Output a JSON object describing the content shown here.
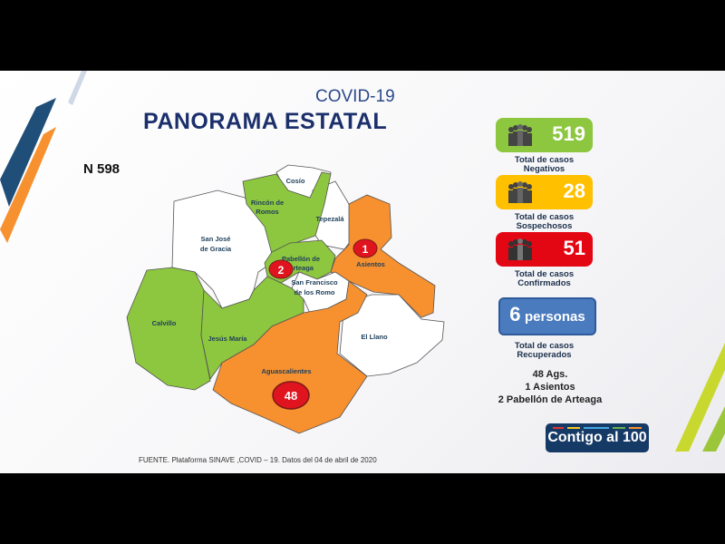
{
  "header": {
    "subtitle": "COVID-19",
    "title": "PANORAMA ESTATAL"
  },
  "total": "N 598",
  "map": {
    "municipalities": [
      {
        "name": "Cosío",
        "status": "none"
      },
      {
        "name": "Rincón de Romos",
        "line1": "Rincón de",
        "line2": "Romos",
        "status": "negative"
      },
      {
        "name": "Tepezalá",
        "status": "none"
      },
      {
        "name": "San José de Gracia",
        "line1": "San José",
        "line2": "de Gracia",
        "status": "none"
      },
      {
        "name": "Asientos",
        "status": "confirmed",
        "cases": "1"
      },
      {
        "name": "Pabellón de Arteaga",
        "line1": "Pabellón de",
        "line2": "Arteaga",
        "status": "confirmed",
        "cases": "2"
      },
      {
        "name": "San Francisco de los Romo",
        "line1": "San Francisco",
        "line2": "de los Romo",
        "status": "none"
      },
      {
        "name": "Calvillo",
        "status": "negative"
      },
      {
        "name": "Jesús María",
        "status": "negative"
      },
      {
        "name": "El Llano",
        "status": "none"
      },
      {
        "name": "Aguascalientes",
        "status": "confirmed",
        "cases": "48"
      }
    ],
    "colors": {
      "green": "#8dc63f",
      "orange": "#f7902f",
      "white": "#ffffff",
      "badge": "#e0141e"
    }
  },
  "stats": {
    "negative": {
      "value": "519",
      "caption1": "Total de casos",
      "caption2": "Negativos",
      "color": "#8dc63f"
    },
    "suspected": {
      "value": "28",
      "caption1": "Total de casos",
      "caption2": "Sospechosos",
      "color": "#ffc000"
    },
    "confirmed": {
      "value": "51",
      "caption1": "Total de casos",
      "caption2": "Confirmados",
      "color": "#e30613"
    },
    "recovered": {
      "value": "6",
      "unit": "personas",
      "caption1": "Total de casos",
      "caption2": "Recuperados",
      "color": "#4a7bbf"
    }
  },
  "recovered_breakdown": [
    "48 Ags.",
    "1 Asientos",
    "2 Pabellón de Arteaga"
  ],
  "source": "FUENTE. Plataforma SINAVE ,COVID – 19. Datos del 04 de abril de 2020",
  "logo": {
    "text": "Contigo al 100"
  }
}
